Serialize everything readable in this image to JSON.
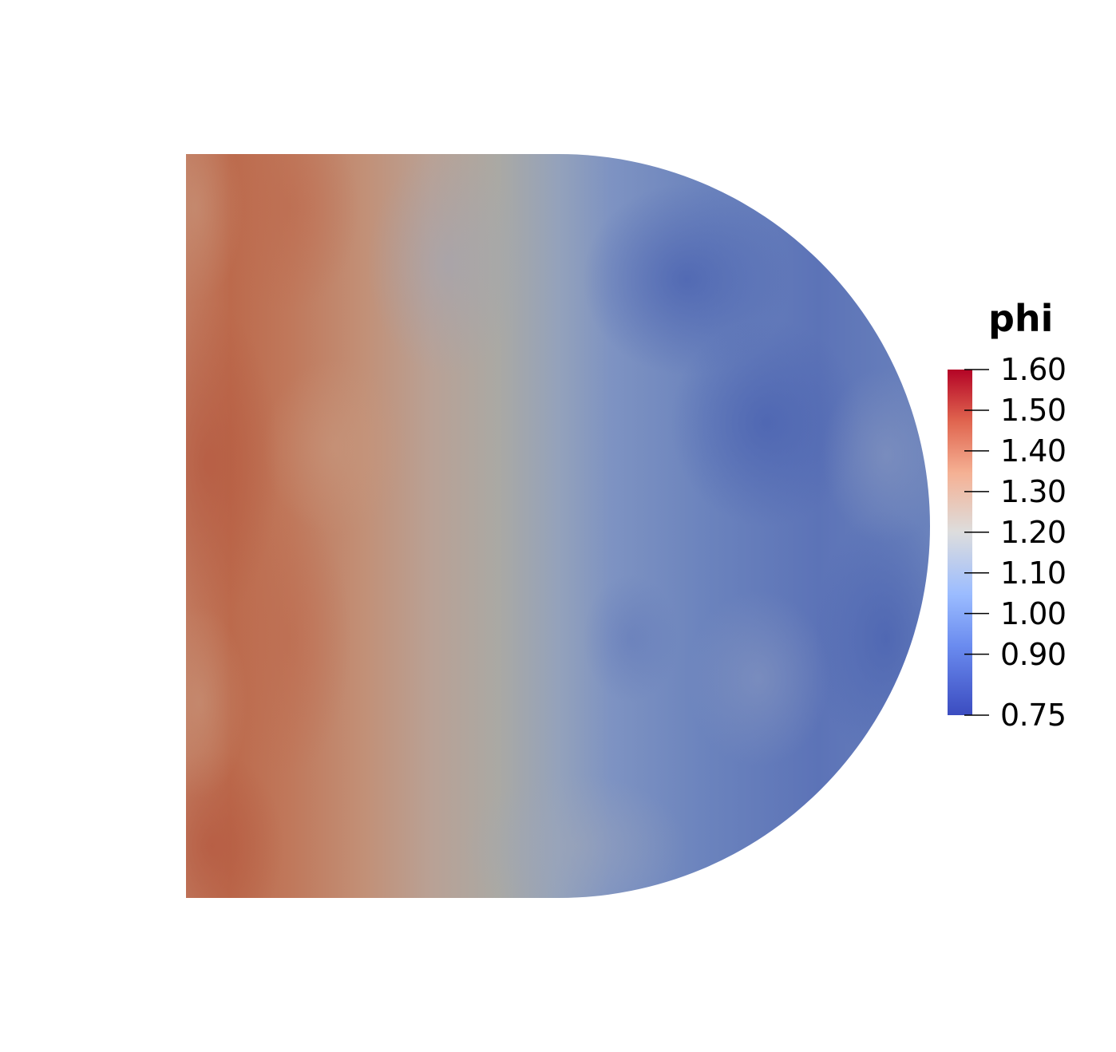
{
  "scalar_bar": {
    "title": "phi",
    "range": [
      0.75,
      1.6
    ],
    "colormap": "Cool to Warm",
    "colormap_stops": [
      "#3b4cc0",
      "#6f91f2",
      "#aac7fd",
      "#dddddd",
      "#f6b89c",
      "#e0654f",
      "#b40426"
    ],
    "ticks": [
      {
        "value": 1.6,
        "label": "1.60"
      },
      {
        "value": 1.5,
        "label": "1.50"
      },
      {
        "value": 1.4,
        "label": "1.40"
      },
      {
        "value": 1.3,
        "label": "1.30"
      },
      {
        "value": 1.2,
        "label": "1.20"
      },
      {
        "value": 1.1,
        "label": "1.10"
      },
      {
        "value": 1.0,
        "label": "1.00"
      },
      {
        "value": 0.9,
        "label": "0.90"
      },
      {
        "value": 0.75,
        "label": "0.75"
      }
    ]
  },
  "field": {
    "name": "phi",
    "shading_colors": {
      "hot": "#b55940",
      "warm": "#c17a5f",
      "mid": "#aaa9a4",
      "cool": "#7a90c0",
      "cold": "#5068b3"
    }
  }
}
